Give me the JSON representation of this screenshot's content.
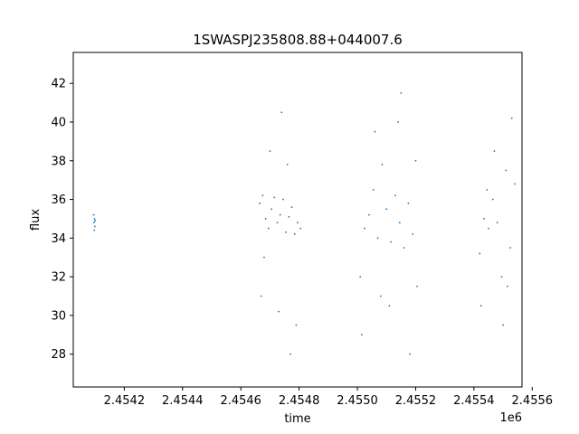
{
  "chart_data": {
    "type": "scatter",
    "title": "1SWASPJ235808.88+044007.6",
    "xlabel": "time",
    "ylabel": "flux",
    "x_offset_label": "1e6",
    "xlim": [
      2454025,
      2455565
    ],
    "ylim": [
      26.3,
      43.6
    ],
    "x_ticks": [
      {
        "value": 2454200,
        "label": "2.4542"
      },
      {
        "value": 2454400,
        "label": "2.4544"
      },
      {
        "value": 2454600,
        "label": "2.4546"
      },
      {
        "value": 2454800,
        "label": "2.4548"
      },
      {
        "value": 2455000,
        "label": "2.4550"
      },
      {
        "value": 2455200,
        "label": "2.4552"
      },
      {
        "value": 2455400,
        "label": "2.4554"
      },
      {
        "value": 2455600,
        "label": "2.4556"
      }
    ],
    "y_ticks": [
      {
        "value": 28,
        "label": "28"
      },
      {
        "value": 30,
        "label": "30"
      },
      {
        "value": 32,
        "label": "32"
      },
      {
        "value": 34,
        "label": "34"
      },
      {
        "value": 36,
        "label": "36"
      },
      {
        "value": 38,
        "label": "38"
      },
      {
        "value": 40,
        "label": "40"
      },
      {
        "value": 42,
        "label": "42"
      }
    ],
    "grid": false,
    "marker_color": "#1f77b4",
    "series": [
      {
        "x": [
          2454095,
          2454096,
          2454097,
          2454098,
          2454099,
          2454100,
          2454665,
          2454675,
          2454685,
          2454695,
          2454705,
          2454715,
          2454725,
          2454735,
          2454745,
          2454755,
          2454765,
          2454775,
          2454785,
          2454795,
          2454805,
          2454670,
          2454700,
          2454730,
          2454760,
          2454790,
          2454680,
          2454740,
          2454770,
          2455010,
          2455025,
          2455040,
          2455055,
          2455070,
          2455085,
          2455100,
          2455115,
          2455130,
          2455145,
          2455160,
          2455175,
          2455190,
          2455205,
          2455015,
          2455060,
          2455110,
          2455150,
          2455180,
          2455200,
          2455080,
          2455140,
          2455420,
          2455435,
          2455450,
          2455465,
          2455480,
          2455495,
          2455510,
          2455525,
          2455540,
          2455425,
          2455470,
          2455500,
          2455530,
          2455445,
          2455515
        ],
        "y": [
          35.2,
          34.8,
          34.4,
          35.0,
          34.6,
          34.9,
          35.8,
          36.2,
          35.0,
          34.5,
          35.5,
          36.1,
          34.8,
          35.2,
          36.0,
          34.3,
          35.1,
          35.6,
          34.2,
          34.8,
          34.5,
          31.0,
          38.5,
          30.2,
          37.8,
          29.5,
          33.0,
          40.5,
          28.0,
          32.0,
          34.5,
          35.2,
          36.5,
          34.0,
          37.8,
          35.5,
          33.8,
          36.2,
          34.8,
          33.5,
          35.8,
          34.2,
          31.5,
          29.0,
          39.5,
          30.5,
          41.5,
          28.0,
          38.0,
          31.0,
          40.0,
          33.2,
          35.0,
          34.5,
          36.0,
          34.8,
          32.0,
          37.5,
          33.5,
          36.8,
          30.5,
          38.5,
          29.5,
          40.2,
          36.5,
          31.5
        ]
      }
    ]
  }
}
